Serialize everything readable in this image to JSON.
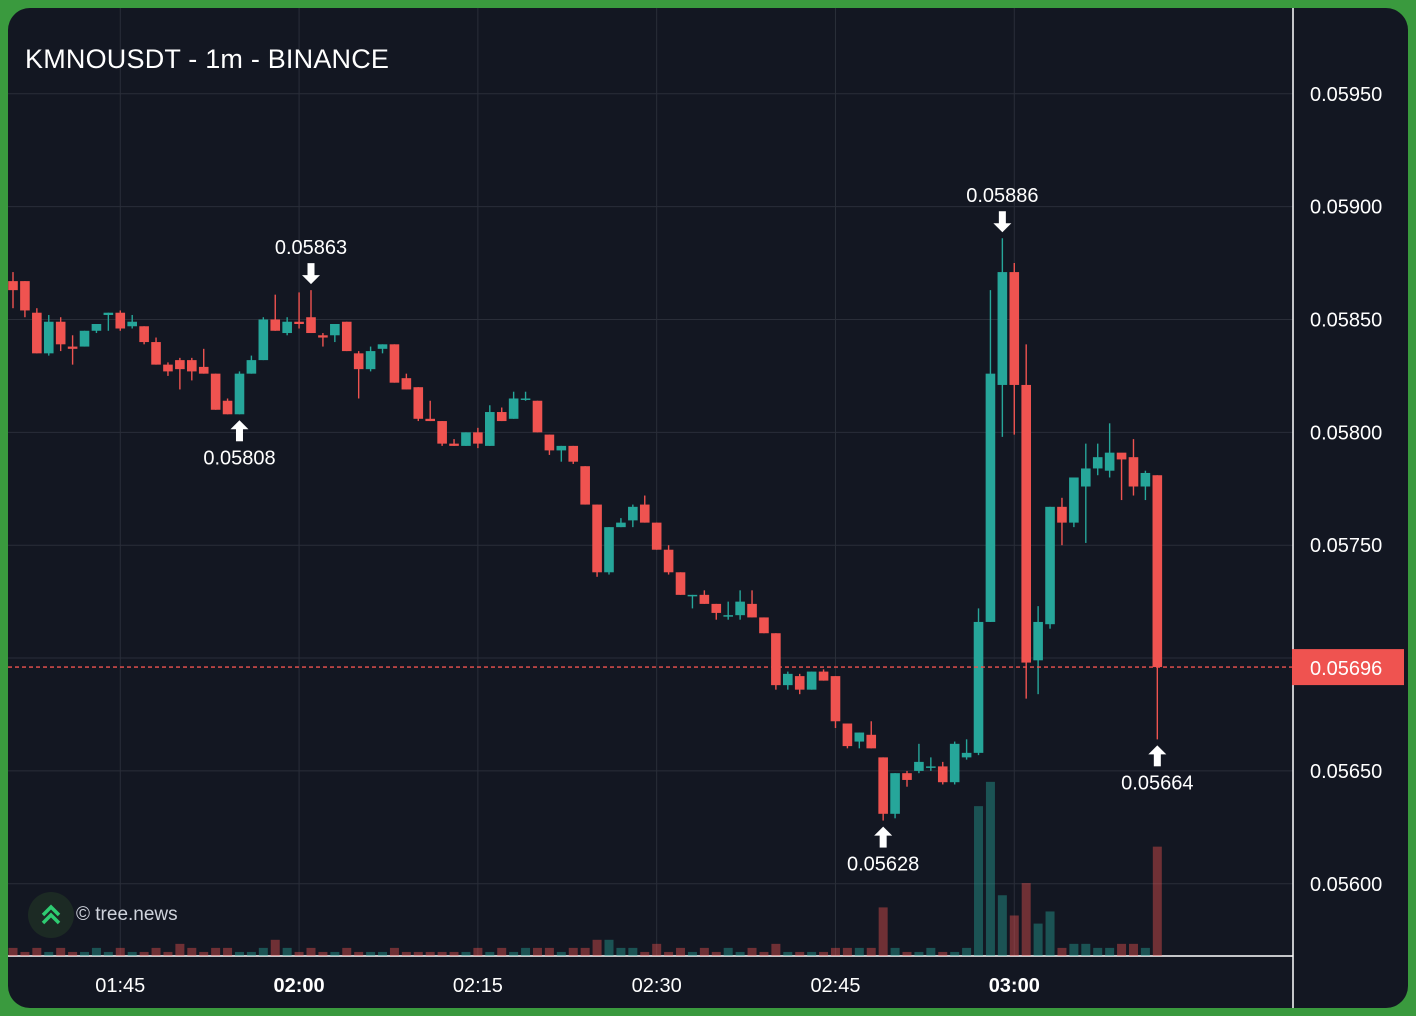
{
  "title": "KMNOUSDT - 1m - BINANCE",
  "watermark": "© tree.news",
  "colors": {
    "background": "#131722",
    "up": "#26a69a",
    "down": "#ef5350",
    "grid": "#2a2e39",
    "text": "#ffffff",
    "frame": "#3a9a3e"
  },
  "last_price_label": "0.05696",
  "chart_data": {
    "type": "candlestick",
    "symbol": "KMNOUSDT",
    "interval": "1m",
    "exchange": "BINANCE",
    "ylim": [
      0.05568,
      0.05988
    ],
    "y_ticks": [
      "0.05600",
      "0.05650",
      "0.05700",
      "0.05750",
      "0.05800",
      "0.05850",
      "0.05900",
      "0.05950"
    ],
    "x_ticks": [
      {
        "label": "01:45",
        "bold": false
      },
      {
        "label": "02:00",
        "bold": true
      },
      {
        "label": "02:15",
        "bold": false
      },
      {
        "label": "02:30",
        "bold": false
      },
      {
        "label": "02:45",
        "bold": false
      },
      {
        "label": "03:00",
        "bold": true
      }
    ],
    "last_price": 0.05696,
    "annotations": [
      {
        "label": "0.05808",
        "candle": 19,
        "kind": "low"
      },
      {
        "label": "0.05863",
        "candle": 25,
        "kind": "high"
      },
      {
        "label": "0.05628",
        "candle": 73,
        "kind": "low"
      },
      {
        "label": "0.05886",
        "candle": 83,
        "kind": "high"
      },
      {
        "label": "0.05664",
        "candle": 96,
        "kind": "low"
      }
    ],
    "candles": [
      [
        0.05867,
        0.05871,
        0.05855,
        0.05863,
        2
      ],
      [
        0.05867,
        0.05867,
        0.05851,
        0.05854,
        1
      ],
      [
        0.05853,
        0.05855,
        0.05835,
        0.05835,
        2
      ],
      [
        0.05835,
        0.05852,
        0.05834,
        0.05849,
        1
      ],
      [
        0.05849,
        0.05851,
        0.05836,
        0.05839,
        2
      ],
      [
        0.05838,
        0.05843,
        0.0583,
        0.05837,
        1
      ],
      [
        0.05838,
        0.05845,
        0.05838,
        0.05845,
        1
      ],
      [
        0.05845,
        0.05848,
        0.05844,
        0.05848,
        2
      ],
      [
        0.05852,
        0.05853,
        0.05845,
        0.05853,
        1
      ],
      [
        0.05853,
        0.05854,
        0.05845,
        0.05846,
        2
      ],
      [
        0.05847,
        0.05852,
        0.05846,
        0.05849,
        1
      ],
      [
        0.05847,
        0.05847,
        0.05839,
        0.0584,
        1
      ],
      [
        0.0584,
        0.05842,
        0.0583,
        0.0583,
        2
      ],
      [
        0.0583,
        0.05831,
        0.05825,
        0.05827,
        1
      ],
      [
        0.05832,
        0.05833,
        0.05819,
        0.05828,
        3
      ],
      [
        0.05832,
        0.05833,
        0.05823,
        0.05827,
        2
      ],
      [
        0.05829,
        0.05837,
        0.05826,
        0.05826,
        1
      ],
      [
        0.05826,
        0.05826,
        0.0581,
        0.0581,
        2
      ],
      [
        0.05814,
        0.05815,
        0.05808,
        0.05808,
        2
      ],
      [
        0.05808,
        0.05827,
        0.05808,
        0.05826,
        1
      ],
      [
        0.05826,
        0.05834,
        0.05826,
        0.05832,
        1
      ],
      [
        0.05832,
        0.05851,
        0.05832,
        0.0585,
        2
      ],
      [
        0.0585,
        0.05861,
        0.05845,
        0.05845,
        4
      ],
      [
        0.05844,
        0.05851,
        0.05843,
        0.05849,
        2
      ],
      [
        0.05849,
        0.05862,
        0.05846,
        0.05848,
        1
      ],
      [
        0.05851,
        0.05863,
        0.05844,
        0.05844,
        2
      ],
      [
        0.05843,
        0.05844,
        0.05838,
        0.05842,
        1
      ],
      [
        0.05843,
        0.05848,
        0.0584,
        0.05848,
        1
      ],
      [
        0.05849,
        0.05849,
        0.05836,
        0.05836,
        2
      ],
      [
        0.05835,
        0.05836,
        0.05815,
        0.05828,
        1
      ],
      [
        0.05828,
        0.05838,
        0.05827,
        0.05836,
        1
      ],
      [
        0.05837,
        0.05839,
        0.05835,
        0.05839,
        1
      ],
      [
        0.05839,
        0.05839,
        0.05822,
        0.05822,
        2
      ],
      [
        0.05824,
        0.05826,
        0.05819,
        0.05819,
        1
      ],
      [
        0.0582,
        0.0582,
        0.05805,
        0.05806,
        1
      ],
      [
        0.05806,
        0.05814,
        0.05805,
        0.05805,
        1
      ],
      [
        0.05805,
        0.05805,
        0.05794,
        0.05795,
        1
      ],
      [
        0.05795,
        0.05797,
        0.05794,
        0.05794,
        1
      ],
      [
        0.05794,
        0.058,
        0.05794,
        0.058,
        1
      ],
      [
        0.058,
        0.05802,
        0.05793,
        0.05795,
        2
      ],
      [
        0.05794,
        0.05812,
        0.05794,
        0.05809,
        1
      ],
      [
        0.05809,
        0.05811,
        0.05805,
        0.05805,
        2
      ],
      [
        0.05806,
        0.05818,
        0.05806,
        0.05815,
        1
      ],
      [
        0.05815,
        0.05818,
        0.05814,
        0.05815,
        2
      ],
      [
        0.05814,
        0.05814,
        0.058,
        0.058,
        2
      ],
      [
        0.05799,
        0.05799,
        0.0579,
        0.05792,
        2
      ],
      [
        0.05792,
        0.05794,
        0.05787,
        0.05794,
        1
      ],
      [
        0.05794,
        0.05794,
        0.05786,
        0.05787,
        2
      ],
      [
        0.05785,
        0.05785,
        0.05768,
        0.05768,
        2
      ],
      [
        0.05768,
        0.05768,
        0.05736,
        0.05738,
        4
      ],
      [
        0.05738,
        0.05758,
        0.05737,
        0.05758,
        4
      ],
      [
        0.05758,
        0.05762,
        0.05758,
        0.0576,
        2
      ],
      [
        0.05761,
        0.05768,
        0.05758,
        0.05767,
        2
      ],
      [
        0.05768,
        0.05772,
        0.0576,
        0.0576,
        1
      ],
      [
        0.0576,
        0.0576,
        0.05748,
        0.05748,
        3
      ],
      [
        0.05748,
        0.0575,
        0.05737,
        0.05738,
        1
      ],
      [
        0.05738,
        0.05738,
        0.05728,
        0.05728,
        2
      ],
      [
        0.05728,
        0.05728,
        0.05722,
        0.05728,
        1
      ],
      [
        0.05728,
        0.0573,
        0.05724,
        0.05724,
        2
      ],
      [
        0.05724,
        0.05724,
        0.05717,
        0.0572,
        1
      ],
      [
        0.05719,
        0.05725,
        0.05717,
        0.05719,
        2
      ],
      [
        0.05719,
        0.0573,
        0.05717,
        0.05725,
        1
      ],
      [
        0.05724,
        0.0573,
        0.05718,
        0.05718,
        2
      ],
      [
        0.05718,
        0.05718,
        0.05711,
        0.05711,
        1
      ],
      [
        0.05711,
        0.05711,
        0.05686,
        0.05688,
        3
      ],
      [
        0.05688,
        0.05694,
        0.05686,
        0.05693,
        1
      ],
      [
        0.05692,
        0.05693,
        0.05684,
        0.05686,
        1
      ],
      [
        0.05686,
        0.05694,
        0.05686,
        0.05694,
        1
      ],
      [
        0.05694,
        0.05695,
        0.0569,
        0.0569,
        1
      ],
      [
        0.05692,
        0.05692,
        0.05669,
        0.05672,
        2
      ],
      [
        0.05671,
        0.05671,
        0.0566,
        0.05661,
        2
      ],
      [
        0.05663,
        0.05667,
        0.0566,
        0.05667,
        2
      ],
      [
        0.05666,
        0.05672,
        0.0566,
        0.0566,
        2
      ],
      [
        0.05656,
        0.05656,
        0.05628,
        0.05631,
        12
      ],
      [
        0.05631,
        0.05649,
        0.05629,
        0.05649,
        2
      ],
      [
        0.05649,
        0.0565,
        0.05643,
        0.05646,
        1
      ],
      [
        0.0565,
        0.05662,
        0.05649,
        0.05654,
        1
      ],
      [
        0.05652,
        0.05656,
        0.0565,
        0.05652,
        2
      ],
      [
        0.05652,
        0.05654,
        0.05644,
        0.05645,
        1
      ],
      [
        0.05645,
        0.05663,
        0.05644,
        0.05662,
        1
      ],
      [
        0.05656,
        0.05664,
        0.05655,
        0.05658,
        2
      ],
      [
        0.05658,
        0.05722,
        0.05657,
        0.05716,
        37
      ],
      [
        0.05716,
        0.05863,
        0.05716,
        0.05826,
        43
      ],
      [
        0.05821,
        0.05886,
        0.05798,
        0.05871,
        15
      ],
      [
        0.05871,
        0.05875,
        0.05799,
        0.05821,
        10
      ],
      [
        0.05821,
        0.05839,
        0.05682,
        0.05698,
        18
      ],
      [
        0.05699,
        0.05723,
        0.05684,
        0.05716,
        8
      ],
      [
        0.05715,
        0.05767,
        0.05713,
        0.05767,
        11
      ],
      [
        0.05767,
        0.05771,
        0.0575,
        0.0576,
        2
      ],
      [
        0.0576,
        0.0578,
        0.05758,
        0.0578,
        3
      ],
      [
        0.05776,
        0.05795,
        0.05751,
        0.05784,
        3
      ],
      [
        0.05784,
        0.05795,
        0.05781,
        0.05789,
        2
      ],
      [
        0.05783,
        0.05804,
        0.0578,
        0.05791,
        2
      ],
      [
        0.05791,
        0.0579,
        0.0577,
        0.05788,
        3
      ],
      [
        0.05789,
        0.05797,
        0.05772,
        0.05776,
        3
      ],
      [
        0.05776,
        0.05783,
        0.0577,
        0.05782,
        2
      ],
      [
        0.05781,
        0.05781,
        0.05664,
        0.05696,
        27
      ]
    ]
  }
}
